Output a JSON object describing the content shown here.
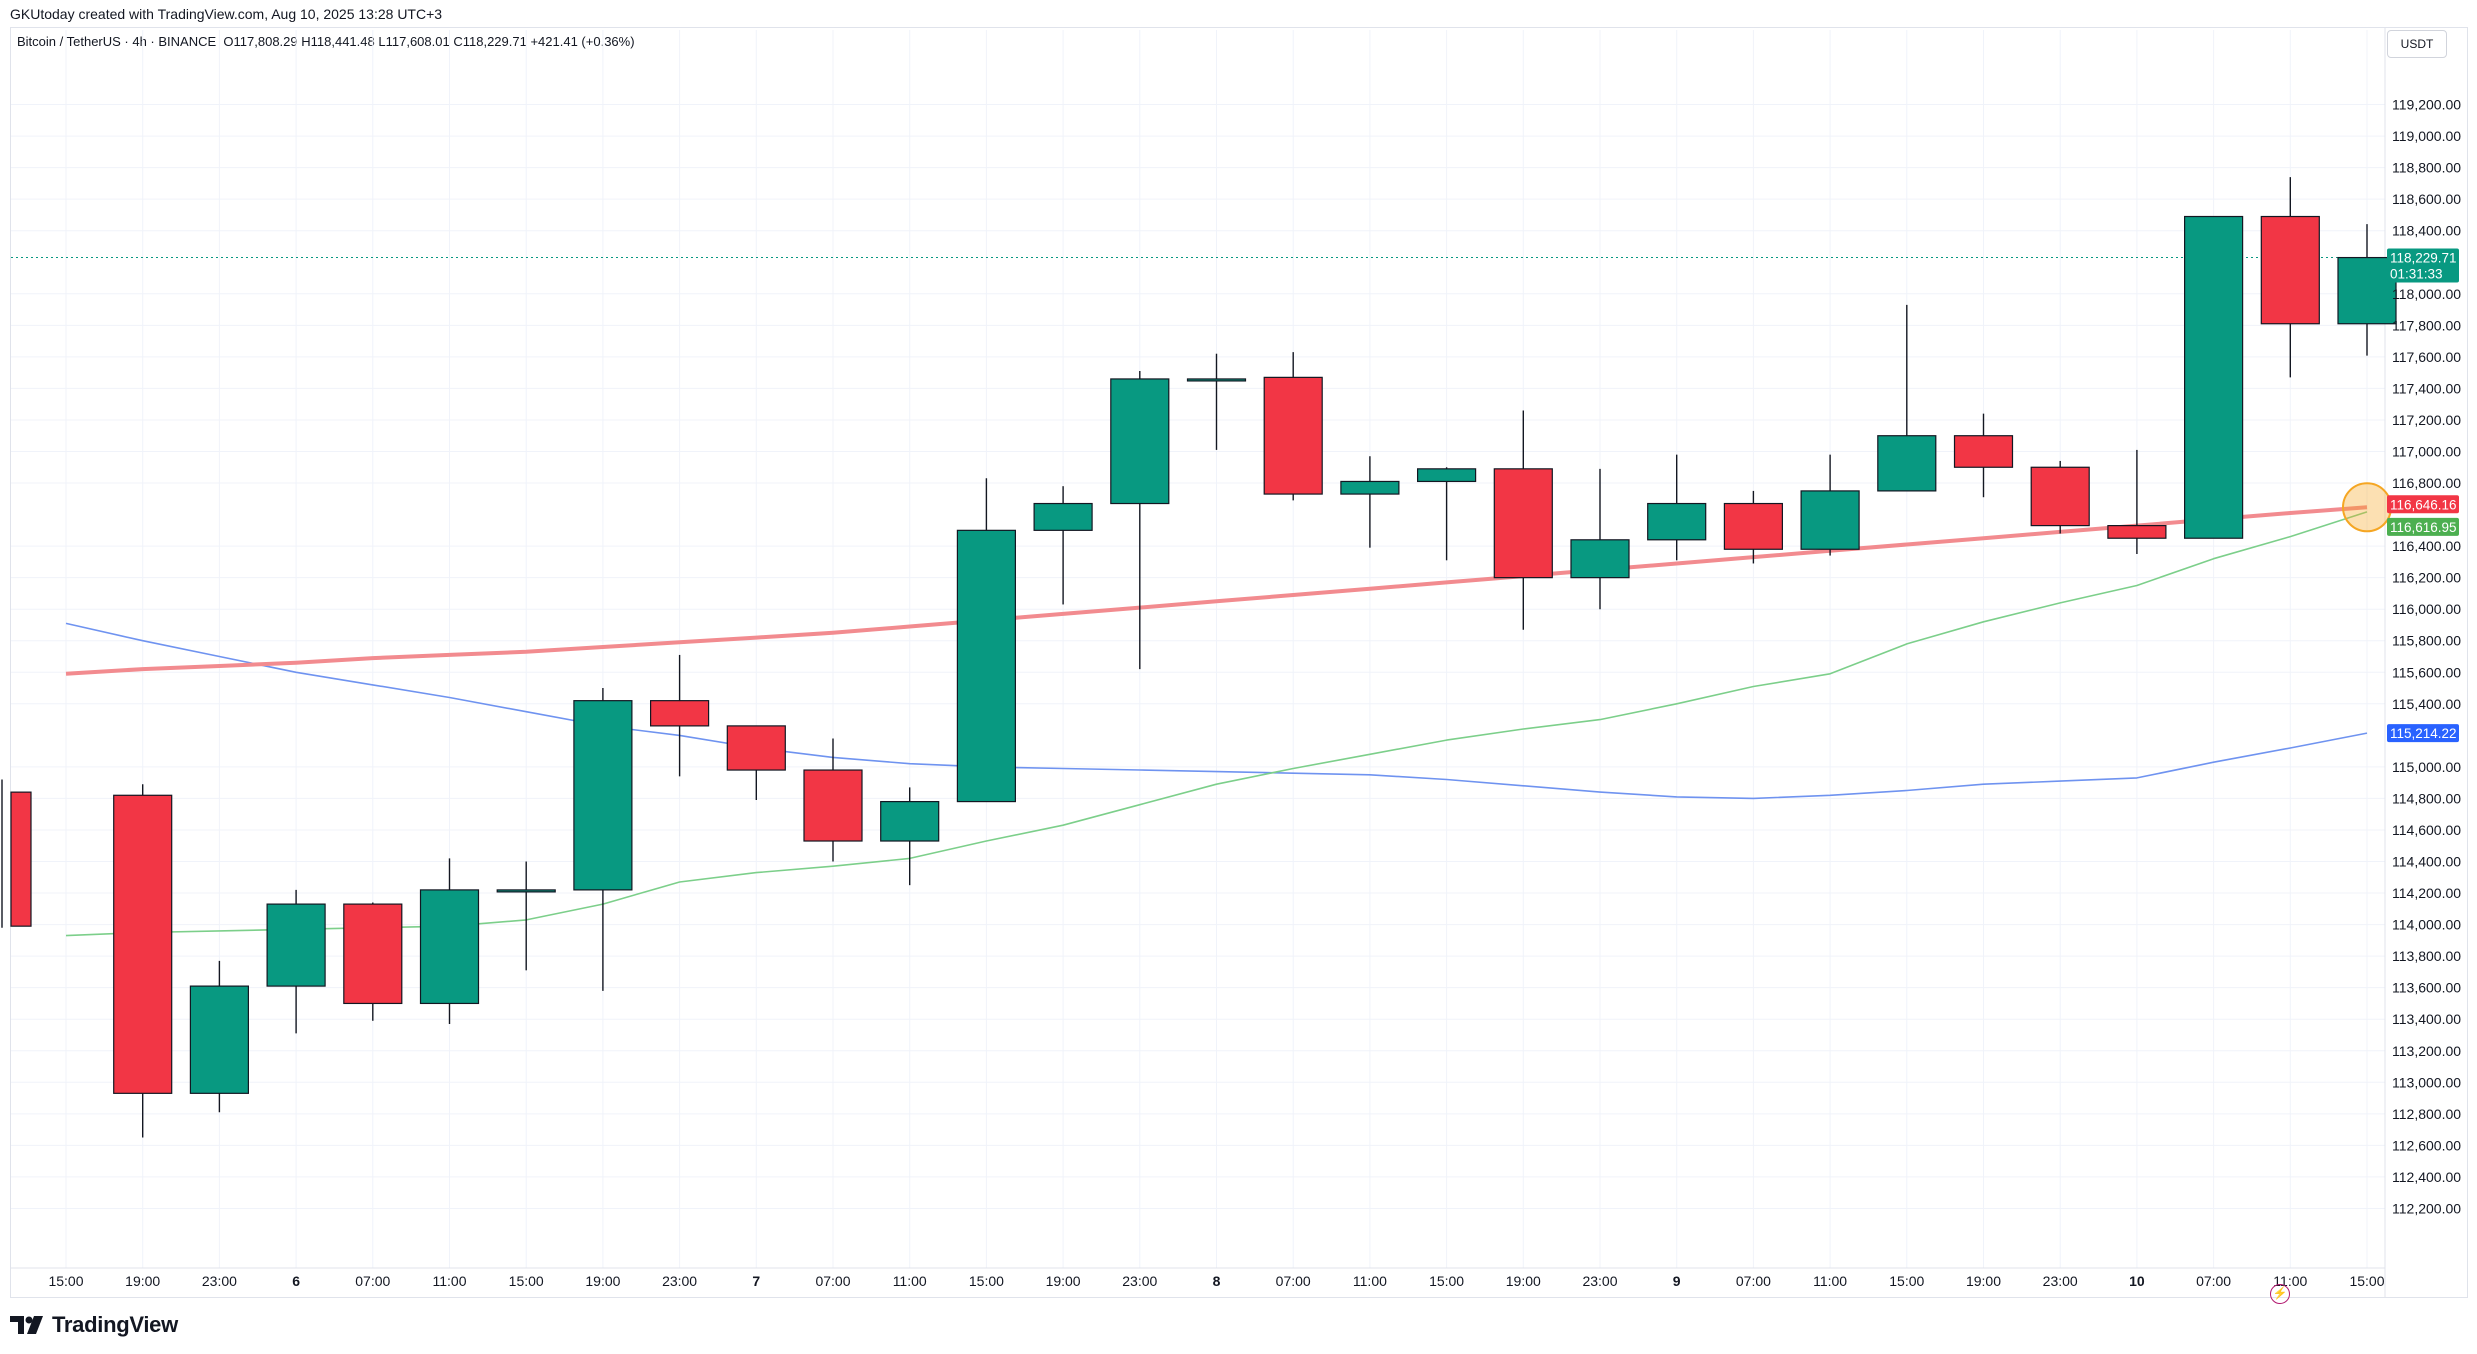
{
  "header": {
    "attribution": "GKUtoday created with TradingView.com, Aug 10, 2025 13:28 UTC+3",
    "symbol": "Bitcoin / TetherUS · 4h · BINANCE",
    "open": "O117,808.29",
    "high": "H118,441.48",
    "low": "L117,608.01",
    "close": "C118,229.71",
    "change": "+421.41 (+0.36%)"
  },
  "currency": "USDT",
  "logo": {
    "text": "TradingView"
  },
  "icons": {
    "flash": "flash-icon",
    "logo": "tradingview-logo-icon"
  },
  "colors": {
    "up": "#089981",
    "down": "#f23645",
    "ma_red": "#f28b8f",
    "ma_green": "#7ccf8a",
    "ma_blue": "#6f93f0",
    "price_line": "#089981",
    "marker": "#f5a623"
  },
  "chart_data": {
    "type": "candlestick",
    "ylim": [
      112000,
      119400
    ],
    "x_tick_labels": [
      "15:00",
      "19:00",
      "23:00",
      "6",
      "07:00",
      "11:00",
      "15:00",
      "19:00",
      "23:00",
      "7",
      "07:00",
      "11:00",
      "15:00",
      "19:00",
      "23:00",
      "8",
      "07:00",
      "11:00",
      "15:00",
      "19:00",
      "23:00",
      "9",
      "07:00",
      "11:00",
      "15:00",
      "19:00",
      "23:00",
      "10",
      "07:00",
      "11:00",
      "15:00"
    ],
    "bold_ticks": [
      "6",
      "7",
      "8",
      "9",
      "10"
    ],
    "y_tick_labels": [
      "119,200.00",
      "119,000.00",
      "118,800.00",
      "118,600.00",
      "118,400.00",
      "118,000.00",
      "117,800.00",
      "117,600.00",
      "117,400.00",
      "117,200.00",
      "117,000.00",
      "116,800.00",
      "116,400.00",
      "116,200.00",
      "116,000.00",
      "115,800.00",
      "115,600.00",
      "115,400.00",
      "115,000.00",
      "114,800.00",
      "114,600.00",
      "114,400.00",
      "114,200.00",
      "114,000.00",
      "113,800.00",
      "113,600.00",
      "113,400.00",
      "113,200.00",
      "113,000.00",
      "112,800.00",
      "112,600.00",
      "112,400.00",
      "112,200.00"
    ],
    "candles": [
      {
        "o": 114840,
        "h": 114920,
        "l": 113980,
        "c": 113990
      },
      {
        "o": 114820,
        "h": 114890,
        "l": 112650,
        "c": 112930
      },
      {
        "o": 112930,
        "h": 113770,
        "l": 112810,
        "c": 113610
      },
      {
        "o": 113610,
        "h": 114220,
        "l": 113310,
        "c": 114130
      },
      {
        "o": 114130,
        "h": 114140,
        "l": 113390,
        "c": 113500
      },
      {
        "o": 113500,
        "h": 114420,
        "l": 113370,
        "c": 114220
      },
      {
        "o": 114220,
        "h": 114400,
        "l": 113710,
        "c": 114220
      },
      {
        "o": 114220,
        "h": 115500,
        "l": 113580,
        "c": 115420
      },
      {
        "o": 115420,
        "h": 115710,
        "l": 114940,
        "c": 115260
      },
      {
        "o": 115260,
        "h": 115260,
        "l": 114790,
        "c": 114980
      },
      {
        "o": 114980,
        "h": 115180,
        "l": 114400,
        "c": 114530
      },
      {
        "o": 114530,
        "h": 114870,
        "l": 114250,
        "c": 114780
      },
      {
        "o": 114780,
        "h": 116830,
        "l": 114780,
        "c": 116500
      },
      {
        "o": 116500,
        "h": 116780,
        "l": 116030,
        "c": 116670
      },
      {
        "o": 116670,
        "h": 117510,
        "l": 115620,
        "c": 117460
      },
      {
        "o": 117460,
        "h": 117620,
        "l": 117010,
        "c": 117460
      },
      {
        "o": 117470,
        "h": 117630,
        "l": 116690,
        "c": 116730
      },
      {
        "o": 116730,
        "h": 116970,
        "l": 116390,
        "c": 116810
      },
      {
        "o": 116810,
        "h": 116900,
        "l": 116310,
        "c": 116890
      },
      {
        "o": 116890,
        "h": 117260,
        "l": 115870,
        "c": 116200
      },
      {
        "o": 116200,
        "h": 116890,
        "l": 116000,
        "c": 116440
      },
      {
        "o": 116440,
        "h": 116980,
        "l": 116310,
        "c": 116670
      },
      {
        "o": 116670,
        "h": 116750,
        "l": 116290,
        "c": 116380
      },
      {
        "o": 116380,
        "h": 116980,
        "l": 116340,
        "c": 116750
      },
      {
        "o": 116750,
        "h": 117930,
        "l": 116750,
        "c": 117100
      },
      {
        "o": 117100,
        "h": 117240,
        "l": 116710,
        "c": 116900
      },
      {
        "o": 116900,
        "h": 116940,
        "l": 116480,
        "c": 116530
      },
      {
        "o": 116530,
        "h": 117010,
        "l": 116350,
        "c": 116450
      },
      {
        "o": 116450,
        "h": 118490,
        "l": 116450,
        "c": 118490
      },
      {
        "o": 118490,
        "h": 118740,
        "l": 117470,
        "c": 117810
      },
      {
        "o": 117810,
        "h": 118441.48,
        "l": 117608.01,
        "c": 118229.71
      }
    ],
    "ma_red": [
      115590,
      115620,
      115640,
      115660,
      115690,
      115710,
      115730,
      115760,
      115790,
      115820,
      115850,
      115890,
      115930,
      115970,
      116010,
      116050,
      116090,
      116130,
      116170,
      116210,
      116250,
      116290,
      116330,
      116370,
      116410,
      116450,
      116490,
      116530,
      116570,
      116610,
      116646.16
    ],
    "ma_green": [
      113930,
      113950,
      113960,
      113970,
      113980,
      113990,
      114030,
      114130,
      114270,
      114330,
      114370,
      114420,
      114530,
      114630,
      114760,
      114890,
      114990,
      115080,
      115170,
      115240,
      115300,
      115400,
      115510,
      115590,
      115780,
      115920,
      116040,
      116150,
      116320,
      116460,
      116616.95
    ],
    "ma_blue": [
      115910,
      115800,
      115700,
      115600,
      115520,
      115440,
      115350,
      115260,
      115200,
      115120,
      115060,
      115020,
      115000,
      114990,
      114980,
      114970,
      114960,
      114950,
      114920,
      114880,
      114840,
      114810,
      114800,
      114820,
      114850,
      114890,
      114910,
      114930,
      115030,
      115120,
      115214.22
    ],
    "price_labels": [
      {
        "value": "118,229.71",
        "sub": "01:31:33",
        "color": "#089981",
        "price": 118229.71
      },
      {
        "value": "116,646.16",
        "color": "#f23645",
        "price": 116646.16
      },
      {
        "value": "116,616.95",
        "color": "#4caf50",
        "price": 116616.95
      },
      {
        "value": "115,214.22",
        "color": "#2962ff",
        "price": 115214.22
      }
    ]
  }
}
